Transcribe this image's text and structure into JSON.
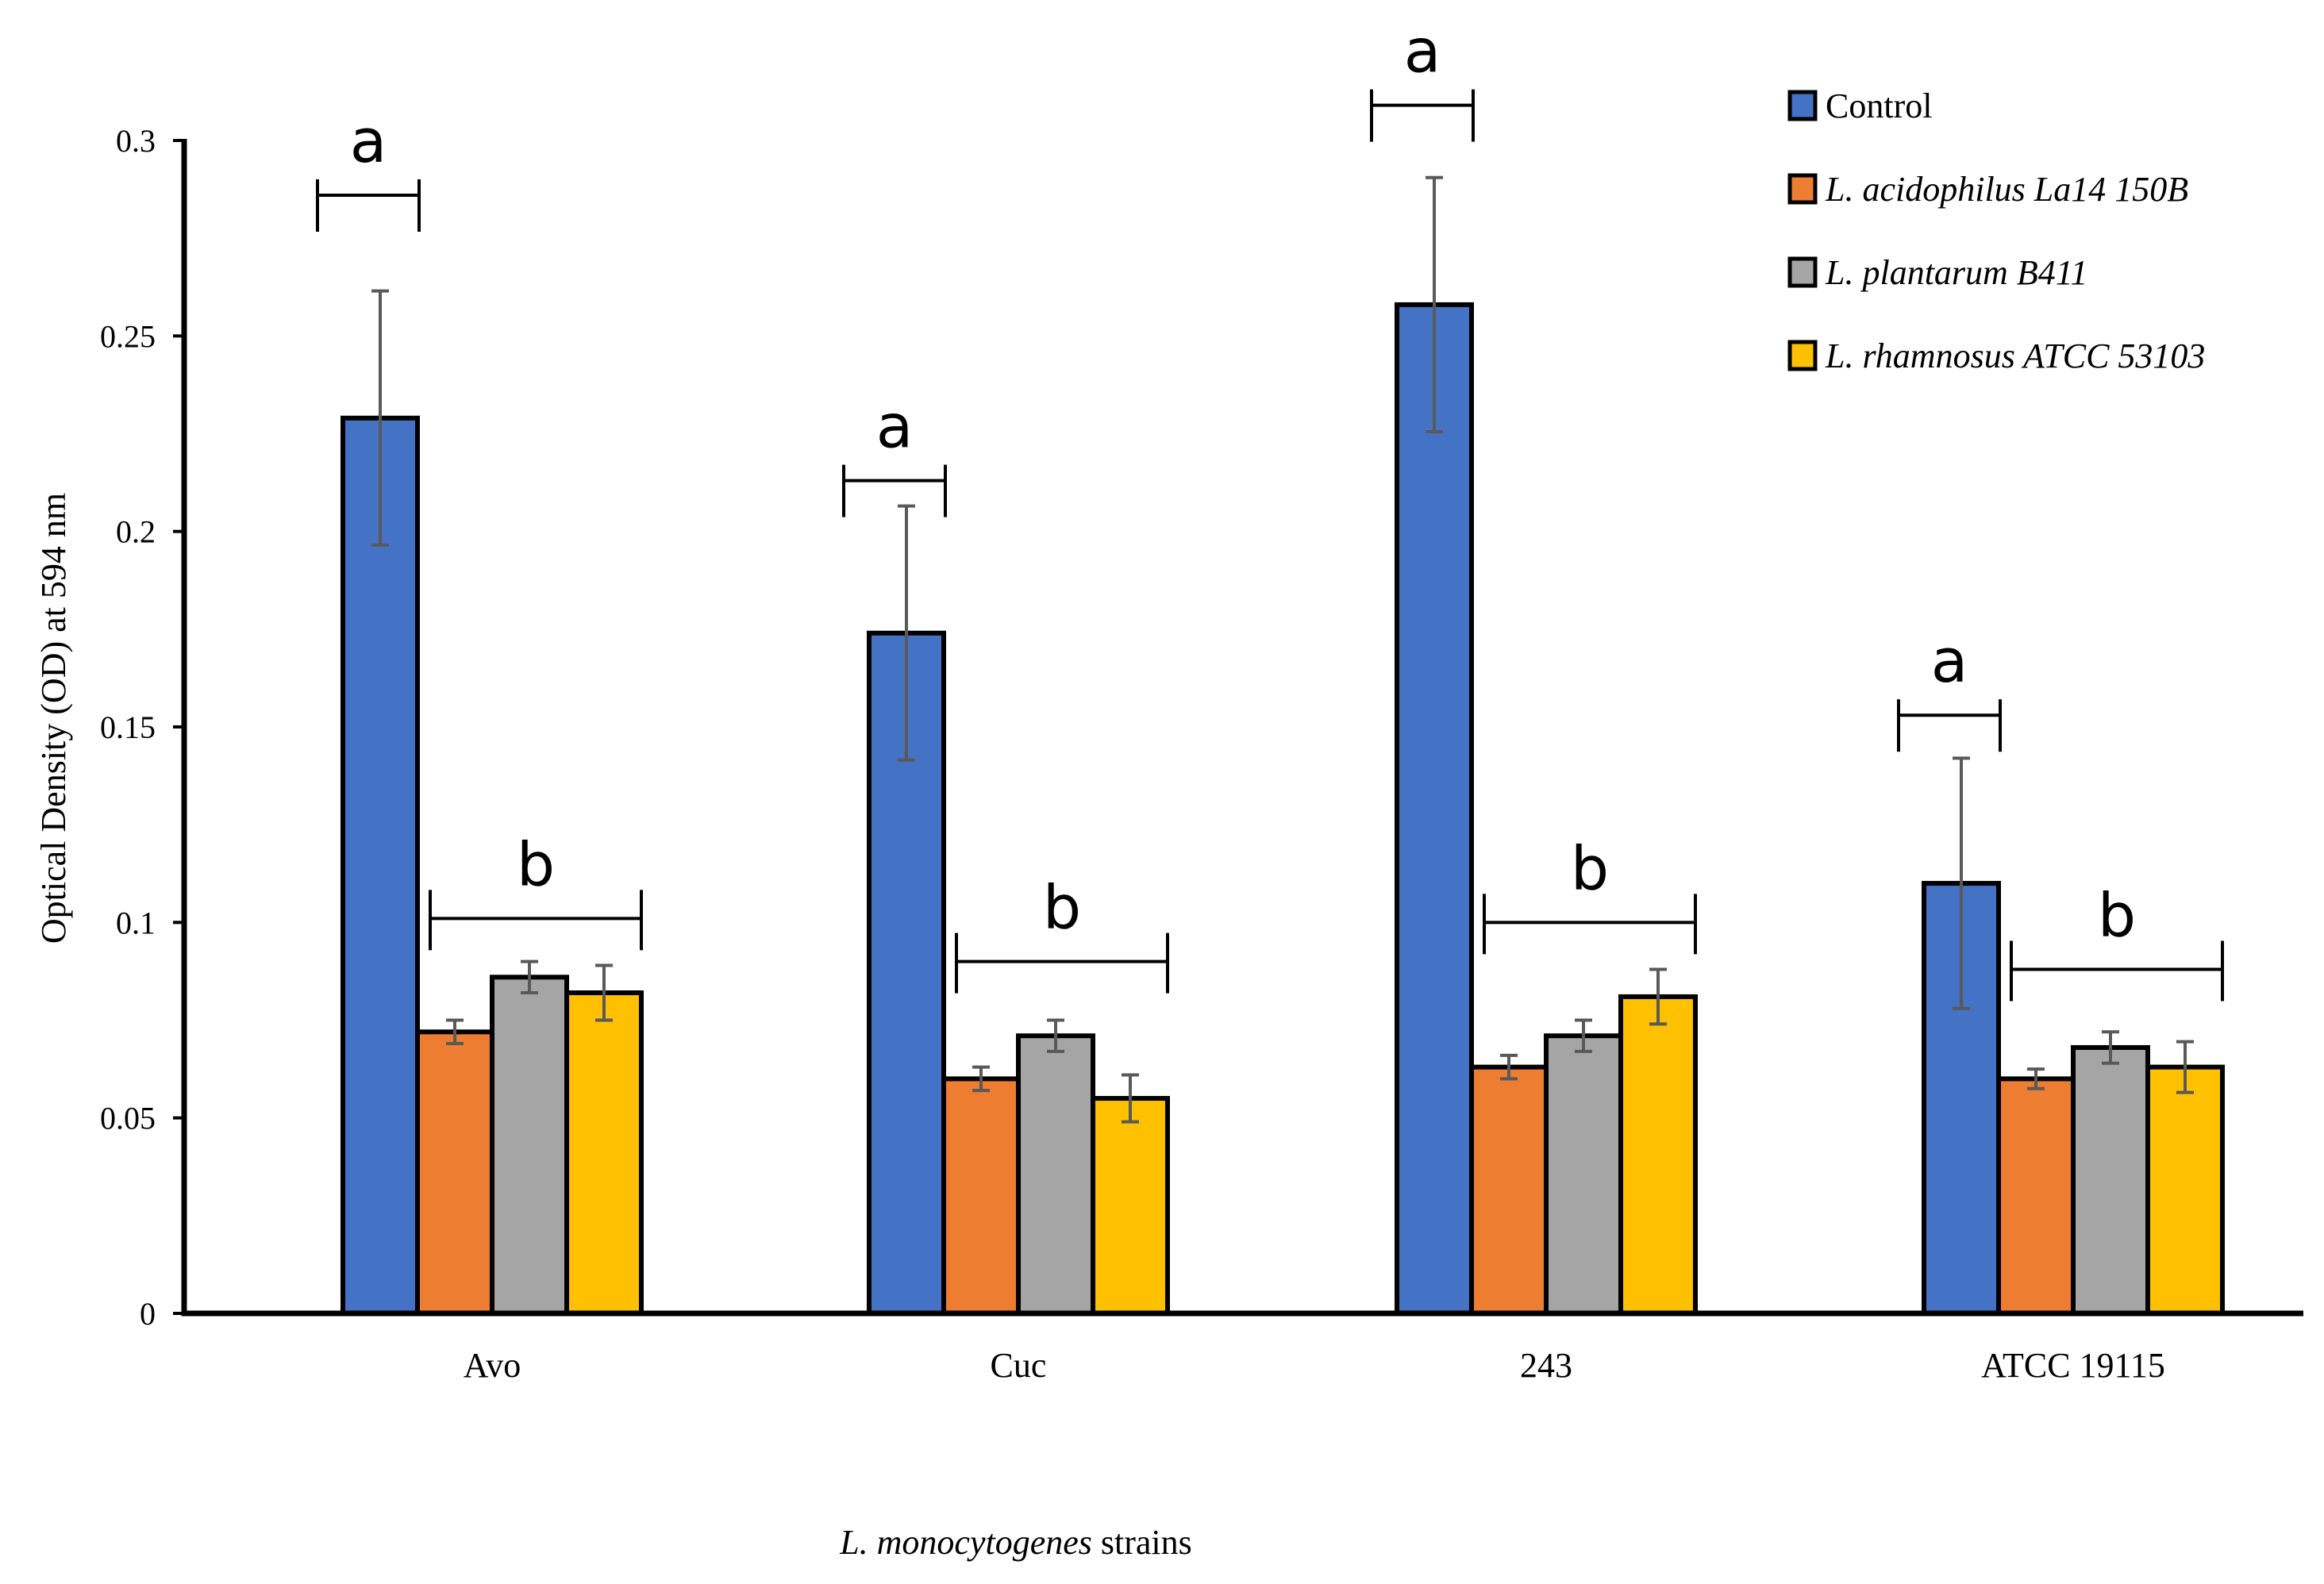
{
  "chart_data": {
    "type": "bar",
    "title": "",
    "xlabel_italic": "L. monocytogenes",
    "xlabel_rest": " strains",
    "ylabel": "Optical Density (OD) at 594 nm",
    "ylim": [
      0,
      0.3
    ],
    "yticks": [
      0,
      0.05,
      0.1,
      0.15,
      0.2,
      0.25,
      0.3
    ],
    "ytick_labels": [
      "0",
      "0.05",
      "0.1",
      "0.15",
      "0.2",
      "0.25",
      "0.3"
    ],
    "categories": [
      "Avo",
      "Cuc",
      "243",
      "ATCC 19115"
    ],
    "legend_position": "top-right",
    "series": [
      {
        "name": "Control",
        "italic": false,
        "color": "#4472C4",
        "values": [
          0.229,
          0.174,
          0.258,
          0.11
        ],
        "errors": [
          0.0325,
          0.0325,
          0.0325,
          0.032
        ]
      },
      {
        "name": "L. acidophilus La14 150B",
        "italic": true,
        "color": "#ED7D31",
        "values": [
          0.072,
          0.06,
          0.063,
          0.06
        ],
        "errors": [
          0.003,
          0.003,
          0.003,
          0.0025
        ]
      },
      {
        "name": "L. plantarum B411",
        "italic": true,
        "color": "#A5A5A5",
        "values": [
          0.086,
          0.071,
          0.071,
          0.068
        ],
        "errors": [
          0.004,
          0.004,
          0.004,
          0.004
        ]
      },
      {
        "name": "L. rhamnosus ATCC 53103",
        "italic": true,
        "color": "#FFC000",
        "values": [
          0.082,
          0.055,
          0.081,
          0.063
        ],
        "errors": [
          0.007,
          0.006,
          0.007,
          0.0065
        ]
      }
    ],
    "annotations": [
      {
        "category": 0,
        "label": "a",
        "span": "control",
        "level": 0.286
      },
      {
        "category": 0,
        "label": "b",
        "span": "treatments",
        "level": 0.101
      },
      {
        "category": 1,
        "label": "a",
        "span": "control",
        "level": 0.213
      },
      {
        "category": 1,
        "label": "b",
        "span": "treatments",
        "level": 0.09
      },
      {
        "category": 2,
        "label": "a",
        "span": "control",
        "level": 0.309
      },
      {
        "category": 2,
        "label": "b",
        "span": "treatments",
        "level": 0.1
      },
      {
        "category": 3,
        "label": "a",
        "span": "control",
        "level": 0.153
      },
      {
        "category": 3,
        "label": "b",
        "span": "treatments",
        "level": 0.088
      }
    ]
  }
}
